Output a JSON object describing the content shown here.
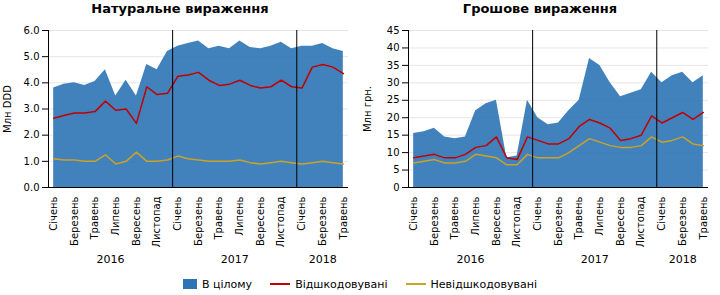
{
  "chart_data": [
    {
      "type": "area",
      "title": "Натуральне вираження",
      "y_label": "Млн DDD",
      "categories": [
        "Січень",
        null,
        "Березень",
        null,
        "Травень",
        null,
        "Липень",
        null,
        "Вересень",
        null,
        "Листопад",
        null,
        "Січень",
        null,
        "Березень",
        null,
        "Травень",
        null,
        "Липень",
        null,
        "Вересень",
        null,
        "Листопад",
        null,
        "Січень",
        null,
        "Березень",
        null,
        "Травень"
      ],
      "series": [
        {
          "name": "В цілому",
          "type": "area",
          "color": "#2E74B5",
          "values": [
            3.8,
            3.95,
            4.0,
            3.9,
            4.05,
            4.5,
            3.5,
            4.1,
            3.5,
            4.7,
            4.5,
            5.2,
            5.4,
            5.5,
            5.6,
            5.3,
            5.4,
            5.3,
            5.6,
            5.35,
            5.3,
            5.4,
            5.55,
            5.3,
            5.4,
            5.4,
            5.5,
            5.3,
            5.2
          ]
        },
        {
          "name": "Відшкодовувані",
          "type": "line",
          "color": "#C00000",
          "values": [
            2.65,
            2.75,
            2.85,
            2.85,
            2.9,
            3.3,
            2.95,
            3.0,
            2.45,
            3.85,
            3.55,
            3.6,
            4.25,
            4.3,
            4.4,
            4.1,
            3.9,
            3.95,
            4.1,
            3.9,
            3.8,
            3.85,
            4.1,
            3.85,
            3.8,
            4.6,
            4.7,
            4.6,
            4.35
          ]
        },
        {
          "name": "Невідшкодовувані",
          "type": "line",
          "color": "#C9A227",
          "values": [
            1.1,
            1.05,
            1.05,
            1.0,
            1.0,
            1.25,
            0.9,
            1.0,
            1.35,
            1.0,
            1.0,
            1.05,
            1.2,
            1.1,
            1.05,
            1.0,
            1.0,
            1.0,
            1.05,
            0.95,
            0.9,
            0.95,
            1.0,
            0.95,
            0.9,
            0.95,
            1.0,
            0.95,
            0.9
          ]
        }
      ],
      "ylim": [
        0,
        6
      ],
      "yticks": [
        0,
        1,
        2,
        3,
        4,
        5,
        6
      ],
      "grid": true,
      "annotations": [
        "2016",
        "2017",
        "2018"
      ]
    },
    {
      "type": "area",
      "title": "Грошове вираження",
      "y_label": "Млн грн.",
      "categories": [
        "Січень",
        null,
        "Березень",
        null,
        "Травень",
        null,
        "Липень",
        null,
        "Вересень",
        null,
        "Листопад",
        null,
        "Січень",
        null,
        "Березень",
        null,
        "Травень",
        null,
        "Липень",
        null,
        "Вересень",
        null,
        "Листопад",
        null,
        "Січень",
        null,
        "Березень",
        null,
        "Травень"
      ],
      "series": [
        {
          "name": "В цілому",
          "type": "area",
          "color": "#2E74B5",
          "values": [
            15.5,
            16.0,
            17.0,
            14.5,
            14.0,
            14.5,
            22.0,
            24.0,
            25.0,
            8.5,
            9.0,
            25.0,
            20.0,
            18.0,
            18.5,
            22.0,
            25.0,
            37.0,
            35.0,
            30.0,
            26.0,
            27.0,
            28.0,
            33.0,
            30.0,
            32.0,
            33.0,
            30.0,
            32.0
          ]
        },
        {
          "name": "Відшкодовувані",
          "type": "line",
          "color": "#C00000",
          "values": [
            8.5,
            9.0,
            9.5,
            8.5,
            8.5,
            9.5,
            11.5,
            12.0,
            14.5,
            8.5,
            8.0,
            14.5,
            13.5,
            12.5,
            12.5,
            14.0,
            17.5,
            19.5,
            18.5,
            17.0,
            13.5,
            14.0,
            15.0,
            20.5,
            18.5,
            20.0,
            21.5,
            19.5,
            21.5
          ]
        },
        {
          "name": "Невідшкодовувані",
          "type": "line",
          "color": "#C9A227",
          "values": [
            7.0,
            7.5,
            8.0,
            7.0,
            7.0,
            7.5,
            9.5,
            9.0,
            8.5,
            6.5,
            6.5,
            9.5,
            8.5,
            8.5,
            8.5,
            10.0,
            12.0,
            14.0,
            13.0,
            12.0,
            11.5,
            11.5,
            12.0,
            14.5,
            13.0,
            13.5,
            14.5,
            12.5,
            12.0
          ]
        }
      ],
      "ylim": [
        0,
        45
      ],
      "yticks": [
        0,
        5,
        10,
        15,
        20,
        25,
        30,
        35,
        40,
        45
      ],
      "grid": true,
      "annotations": [
        "2016",
        "2017",
        "2018"
      ]
    }
  ]
}
